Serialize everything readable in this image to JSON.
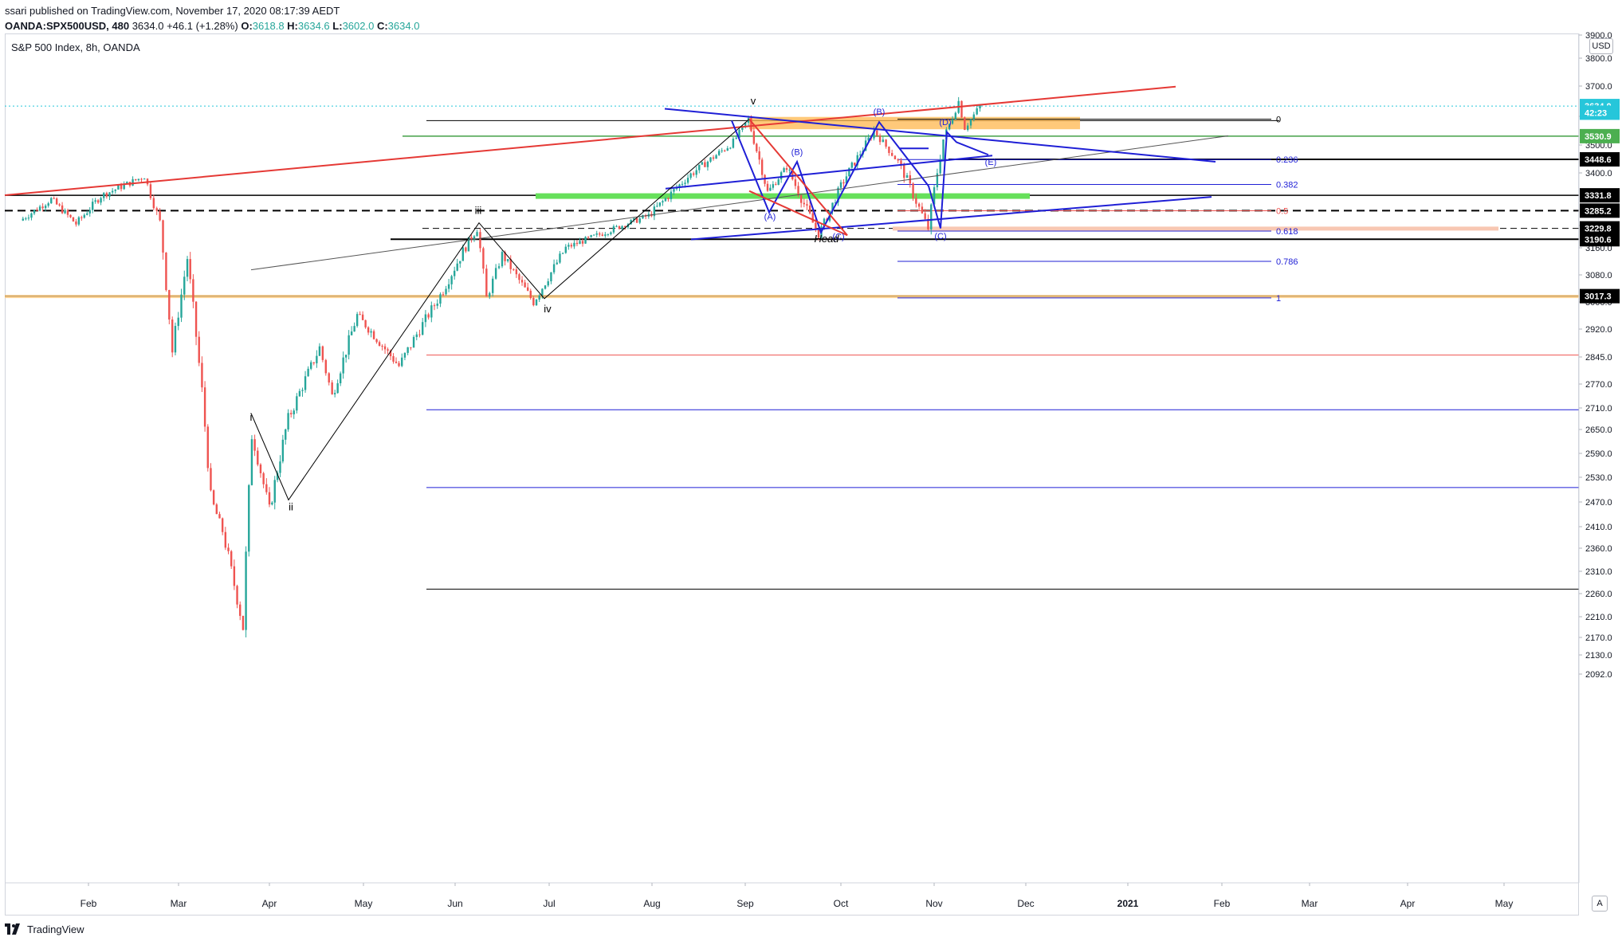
{
  "header": {
    "published_line": "ssari published on TradingView.com, November 17, 2020 08:17:39 AEDT",
    "symbol": "OANDA:SPX500USD, 480",
    "last": "3634.0",
    "change": "+46.1 (+1.28%)",
    "open_label": "O:",
    "open": "3618.8",
    "high_label": "H:",
    "high": "3634.6",
    "low_label": "L:",
    "low": "3602.0",
    "close_label": "C:",
    "close": "3634.0"
  },
  "chart_title": "S&P 500 Index, 8h, OANDA",
  "currency": "USD",
  "footer": {
    "brand": "TradingView"
  },
  "chart_data": {
    "type": "candlestick",
    "title": "S&P 500 Index, 8h, OANDA",
    "ylim": [
      2060,
      3900
    ],
    "y_ticks": [
      3900.0,
      3800.0,
      3700.0,
      3600.0,
      3500.0,
      3400.0,
      3240.0,
      3160.0,
      3080.0,
      3000.0,
      2920.0,
      2845.0,
      2770.0,
      2710.0,
      2650.0,
      2590.0,
      2530.0,
      2470.0,
      2410.0,
      2360.0,
      2310.0,
      2260.0,
      2210.0,
      2170.0,
      2130.0,
      2092.0
    ],
    "x_ticks": [
      "Feb",
      "Mar",
      "Apr",
      "May",
      "Jun",
      "Jul",
      "Aug",
      "Sep",
      "Oct",
      "Nov",
      "Dec",
      "2021",
      "Feb",
      "Mar",
      "Apr",
      "May"
    ],
    "price_badges": [
      {
        "label": "3634.0",
        "style": "last",
        "color": "#26c6da"
      },
      {
        "label": "42:23",
        "style": "countdown",
        "color": "#26c6da"
      },
      {
        "label": "3530.9",
        "style": "level",
        "color": "#4caf50"
      },
      {
        "label": "3448.6",
        "style": "level",
        "color": "#000000"
      },
      {
        "label": "3331.8",
        "style": "level",
        "color": "#000000"
      },
      {
        "label": "3285.2",
        "style": "level",
        "color": "#000000"
      },
      {
        "label": "3229.8",
        "style": "level",
        "color": "#000000"
      },
      {
        "label": "3190.6",
        "style": "level",
        "color": "#000000"
      },
      {
        "label": "3017.3",
        "style": "level",
        "color": "#000000"
      }
    ],
    "fib_levels": [
      "0",
      "0.236",
      "0.382",
      "0.5",
      "0.618",
      "0.786",
      "1"
    ],
    "wave_labels": [
      "i",
      "ii",
      "iii",
      "iv",
      "v",
      "(A)",
      "(B)",
      "(C)",
      "(B)",
      "(C)",
      "(D)",
      "(E)",
      "Head"
    ],
    "price_path": [
      [
        "Jan 10",
        3255
      ],
      [
        "Jan 20",
        3320
      ],
      [
        "Jan 28",
        3245
      ],
      [
        "Feb 5",
        3330
      ],
      [
        "Feb 19",
        3390
      ],
      [
        "Feb 24",
        3250
      ],
      [
        "Feb 28",
        2860
      ],
      [
        "Mar 4",
        3130
      ],
      [
        "Mar 9",
        2750
      ],
      [
        "Mar 12",
        2480
      ],
      [
        "Mar 16",
        2400
      ],
      [
        "Mar 23",
        2190
      ],
      [
        "Mar 26",
        2640
      ],
      [
        "Apr 1",
        2450
      ],
      [
        "Apr 7",
        2680
      ],
      [
        "Apr 17",
        2870
      ],
      [
        "Apr 21",
        2740
      ],
      [
        "Apr 29",
        2960
      ],
      [
        "May 13",
        2820
      ],
      [
        "May 27",
        3020
      ],
      [
        "Jun 8",
        3230
      ],
      [
        "Jun 11",
        3010
      ],
      [
        "Jun 16",
        3140
      ],
      [
        "Jun 26",
        3000
      ],
      [
        "Jul 6",
        3160
      ],
      [
        "Jul 23",
        3240
      ],
      [
        "Jul 31",
        3270
      ],
      [
        "Aug 12",
        3380
      ],
      [
        "Aug 28",
        3510
      ],
      [
        "Sep 2",
        3590
      ],
      [
        "Sep 8",
        3340
      ],
      [
        "Sep 14",
        3420
      ],
      [
        "Sep 24",
        3210
      ],
      [
        "Oct 1",
        3360
      ],
      [
        "Oct 12",
        3550
      ],
      [
        "Oct 20",
        3440
      ],
      [
        "Oct 30",
        3230
      ],
      [
        "Nov 4",
        3520
      ],
      [
        "Nov 9",
        3650
      ],
      [
        "Nov 11",
        3560
      ],
      [
        "Nov 16",
        3634
      ]
    ]
  }
}
